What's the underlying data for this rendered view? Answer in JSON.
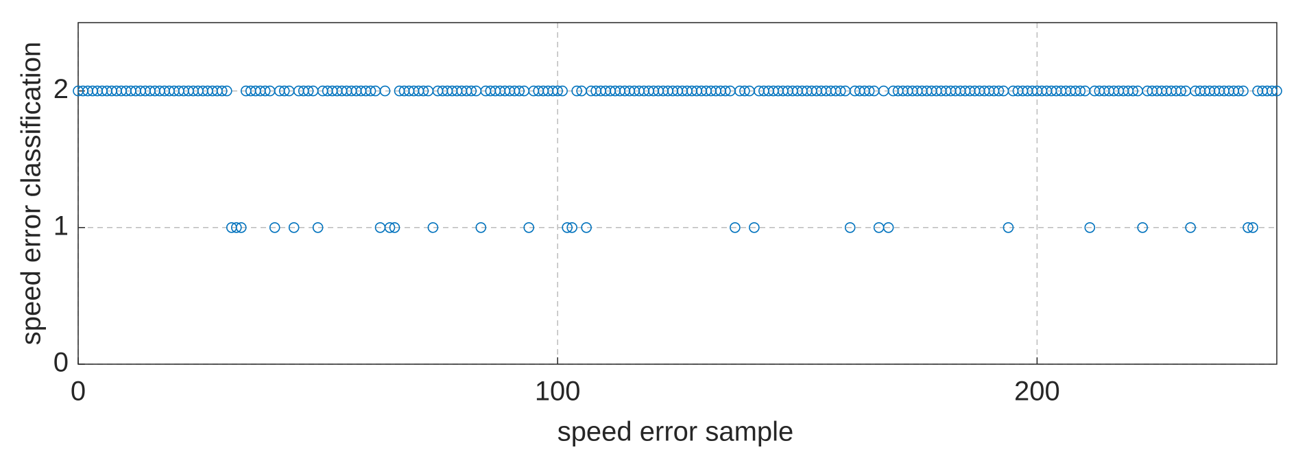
{
  "chart_data": {
    "type": "scatter",
    "xlabel": "speed error sample",
    "ylabel": "speed error classification",
    "xlim": [
      0,
      250
    ],
    "ylim": [
      0,
      2.5
    ],
    "xticks": [
      0,
      100,
      200
    ],
    "yticks": [
      0,
      1,
      2
    ],
    "grid": true,
    "series": [
      {
        "color": "#0072bd",
        "x": [
          0,
          1,
          2,
          3,
          4,
          5,
          6,
          7,
          8,
          9,
          10,
          11,
          12,
          13,
          14,
          15,
          16,
          17,
          18,
          19,
          20,
          21,
          22,
          23,
          24,
          25,
          26,
          27,
          28,
          29,
          30,
          31,
          32,
          33,
          34,
          35,
          36,
          37,
          38,
          39,
          40,
          41,
          42,
          43,
          44,
          45,
          46,
          47,
          48,
          49,
          50,
          51,
          52,
          53,
          54,
          55,
          56,
          57,
          58,
          59,
          60,
          61,
          62,
          63,
          64,
          65,
          66,
          67,
          68,
          69,
          70,
          71,
          72,
          73,
          74,
          75,
          76,
          77,
          78,
          79,
          80,
          81,
          82,
          83,
          84,
          85,
          86,
          87,
          88,
          89,
          90,
          91,
          92,
          93,
          94,
          95,
          96,
          97,
          98,
          99,
          100,
          101,
          102,
          103,
          104,
          105,
          106,
          107,
          108,
          109,
          110,
          111,
          112,
          113,
          114,
          115,
          116,
          117,
          118,
          119,
          120,
          121,
          122,
          123,
          124,
          125,
          126,
          127,
          128,
          129,
          130,
          131,
          132,
          133,
          134,
          135,
          136,
          137,
          138,
          139,
          140,
          141,
          142,
          143,
          144,
          145,
          146,
          147,
          148,
          149,
          150,
          151,
          152,
          153,
          154,
          155,
          156,
          157,
          158,
          159,
          160,
          161,
          162,
          163,
          164,
          165,
          166,
          167,
          168,
          169,
          170,
          171,
          172,
          173,
          174,
          175,
          176,
          177,
          178,
          179,
          180,
          181,
          182,
          183,
          184,
          185,
          186,
          187,
          188,
          189,
          190,
          191,
          192,
          193,
          194,
          195,
          196,
          197,
          198,
          199,
          200,
          201,
          202,
          203,
          204,
          205,
          206,
          207,
          208,
          209,
          210,
          211,
          212,
          213,
          214,
          215,
          216,
          217,
          218,
          219,
          220,
          221,
          222,
          223,
          224,
          225,
          226,
          227,
          228,
          229,
          230,
          231,
          232,
          233,
          234,
          235,
          236,
          237,
          238,
          239,
          240,
          241,
          242,
          243,
          244,
          245,
          246,
          247,
          248,
          249,
          250
        ],
        "values": [
          2,
          2,
          2,
          2,
          2,
          2,
          2,
          2,
          2,
          2,
          2,
          2,
          2,
          2,
          2,
          2,
          2,
          2,
          2,
          2,
          2,
          2,
          2,
          2,
          2,
          2,
          2,
          2,
          2,
          2,
          2,
          2,
          1,
          1,
          1,
          2,
          2,
          2,
          2,
          2,
          2,
          1,
          2,
          2,
          2,
          1,
          2,
          2,
          2,
          2,
          1,
          2,
          2,
          2,
          2,
          2,
          2,
          2,
          2,
          2,
          2,
          2,
          2,
          1,
          2,
          1,
          1,
          2,
          2,
          2,
          2,
          2,
          2,
          2,
          1,
          2,
          2,
          2,
          2,
          2,
          2,
          2,
          2,
          2,
          1,
          2,
          2,
          2,
          2,
          2,
          2,
          2,
          2,
          2,
          1,
          2,
          2,
          2,
          2,
          2,
          2,
          2,
          1,
          1,
          2,
          2,
          1,
          2,
          2,
          2,
          2,
          2,
          2,
          2,
          2,
          2,
          2,
          2,
          2,
          2,
          2,
          2,
          2,
          2,
          2,
          2,
          2,
          2,
          2,
          2,
          2,
          2,
          2,
          2,
          2,
          2,
          2,
          1,
          2,
          2,
          2,
          1,
          2,
          2,
          2,
          2,
          2,
          2,
          2,
          2,
          2,
          2,
          2,
          2,
          2,
          2,
          2,
          2,
          2,
          2,
          2,
          1,
          2,
          2,
          2,
          2,
          2,
          1,
          2,
          1,
          2,
          2,
          2,
          2,
          2,
          2,
          2,
          2,
          2,
          2,
          2,
          2,
          2,
          2,
          2,
          2,
          2,
          2,
          2,
          2,
          2,
          2,
          2,
          2,
          1,
          2,
          2,
          2,
          2,
          2,
          2,
          2,
          2,
          2,
          2,
          2,
          2,
          2,
          2,
          2,
          2,
          1,
          2,
          2,
          2,
          2,
          2,
          2,
          2,
          2,
          2,
          2,
          1,
          2,
          2,
          2,
          2,
          2,
          2,
          2,
          2,
          2,
          1,
          2,
          2,
          2,
          2,
          2,
          2,
          2,
          2,
          2,
          2,
          2,
          1,
          1,
          2,
          2,
          2,
          2,
          2
        ]
      }
    ]
  }
}
